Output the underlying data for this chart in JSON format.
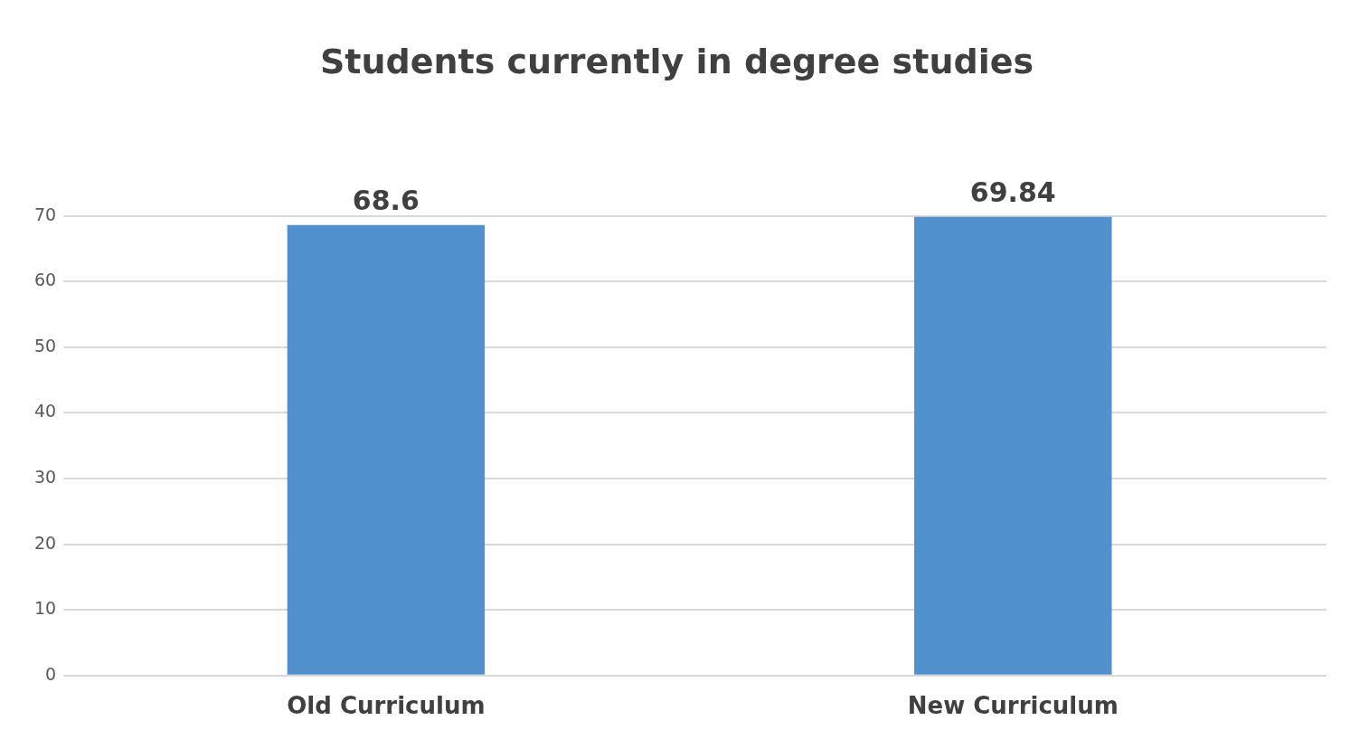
{
  "chart_data": {
    "type": "bar",
    "title": "Students currently in degree studies",
    "categories": [
      "Old Curriculum",
      "New Curriculum"
    ],
    "values": [
      68.6,
      69.84
    ],
    "color": "#4f90cd",
    "ylim": [
      0,
      70
    ],
    "yticks": [
      0,
      10,
      20,
      30,
      40,
      50,
      60,
      70
    ],
    "grid": "y",
    "data_labels": true,
    "legend": false
  }
}
